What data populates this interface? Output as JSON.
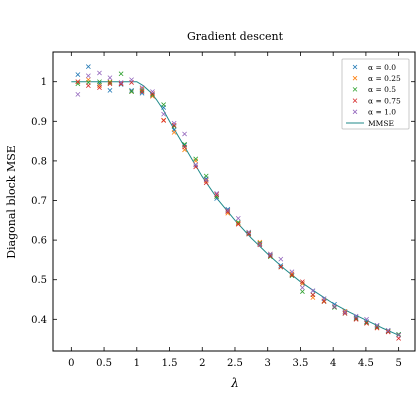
{
  "chart_data": {
    "type": "scatter",
    "title": "Gradient descent",
    "xlabel": "λ",
    "ylabel": "Diagonal block MSE",
    "xlim": [
      -0.28,
      5.25
    ],
    "ylim": [
      0.32,
      1.075
    ],
    "xticks": [
      0,
      0.5,
      1,
      1.5,
      2,
      2.5,
      3,
      3.5,
      4,
      4.5,
      5
    ],
    "xtick_labels": [
      "0",
      "0.5",
      "1",
      "1.5",
      "2",
      "2.5",
      "3",
      "3.5",
      "4",
      "4.5",
      "5"
    ],
    "yticks": [
      0.4,
      0.5,
      0.6,
      0.7,
      0.8,
      0.9,
      1.0
    ],
    "ytick_labels": [
      "0.4",
      "0.5",
      "0.6",
      "0.7",
      "0.8",
      "0.9",
      "1"
    ],
    "grid": false,
    "legend_position": "top-right",
    "x": [
      0.1,
      0.26,
      0.43,
      0.59,
      0.76,
      0.92,
      1.08,
      1.24,
      1.41,
      1.57,
      1.73,
      1.9,
      2.06,
      2.22,
      2.39,
      2.55,
      2.71,
      2.88,
      3.04,
      3.2,
      3.37,
      3.53,
      3.69,
      3.86,
      4.02,
      4.18,
      4.35,
      4.51,
      4.67,
      4.84,
      5.0
    ],
    "series": [
      {
        "name": "α = 0.0",
        "marker": "x",
        "color": "#1f77b4",
        "values": [
          1.018,
          1.038,
          0.995,
          0.978,
          0.993,
          0.978,
          0.971,
          0.965,
          0.935,
          0.878,
          0.84,
          0.79,
          0.755,
          0.705,
          0.678,
          0.642,
          0.618,
          0.59,
          0.562,
          0.536,
          0.512,
          0.49,
          0.472,
          0.452,
          0.438,
          0.42,
          0.405,
          0.394,
          0.384,
          0.372,
          0.362
        ]
      },
      {
        "name": "α = 0.25",
        "marker": "x",
        "color": "#ff7f0e",
        "values": [
          1.0,
          1.005,
          0.99,
          1.0,
          0.995,
          0.975,
          0.982,
          0.963,
          0.903,
          0.872,
          0.828,
          0.8,
          0.75,
          0.71,
          0.668,
          0.642,
          0.62,
          0.595,
          0.565,
          0.532,
          0.515,
          0.49,
          0.455,
          0.447,
          0.432,
          0.42,
          0.402,
          0.39,
          0.378,
          0.37,
          0.36
        ]
      },
      {
        "name": "α = 0.5",
        "marker": "x",
        "color": "#2ca02c",
        "values": [
          0.995,
          0.998,
          1.0,
          0.998,
          1.02,
          0.975,
          0.978,
          0.967,
          0.942,
          0.888,
          0.842,
          0.805,
          0.762,
          0.71,
          0.675,
          0.645,
          0.617,
          0.592,
          0.558,
          0.532,
          0.51,
          0.47,
          0.462,
          0.445,
          0.43,
          0.415,
          0.402,
          0.392,
          0.381,
          0.37,
          0.362
        ]
      },
      {
        "name": "α = 0.75",
        "marker": "x",
        "color": "#d62728",
        "values": [
          1.0,
          0.99,
          0.985,
          0.995,
          0.995,
          0.998,
          0.975,
          0.97,
          0.902,
          0.89,
          0.835,
          0.785,
          0.745,
          0.715,
          0.672,
          0.64,
          0.615,
          0.588,
          0.56,
          0.532,
          0.512,
          0.495,
          0.462,
          0.445,
          0.432,
          0.415,
          0.4,
          0.39,
          0.378,
          0.368,
          0.352
        ]
      },
      {
        "name": "α = 1.0",
        "marker": "x",
        "color": "#9467bd",
        "values": [
          0.968,
          1.015,
          1.022,
          1.01,
          0.998,
          1.005,
          0.985,
          0.975,
          0.918,
          0.895,
          0.868,
          0.79,
          0.752,
          0.718,
          0.675,
          0.655,
          0.62,
          0.59,
          0.565,
          0.552,
          0.52,
          0.48,
          0.472,
          0.452,
          0.432,
          0.418,
          0.408,
          0.4,
          0.385,
          0.372,
          0.36
        ]
      },
      {
        "name": "MMSE",
        "marker": "line",
        "color": "#1f8a8a",
        "x": [
          0.0,
          0.25,
          0.5,
          0.75,
          1.0,
          1.1,
          1.2,
          1.3,
          1.4,
          1.5,
          1.75,
          2.0,
          2.25,
          2.5,
          2.75,
          3.0,
          3.25,
          3.5,
          3.75,
          4.0,
          4.25,
          4.5,
          4.75,
          5.0
        ],
        "values": [
          1.0,
          1.0,
          1.0,
          1.0,
          1.0,
          0.99,
          0.975,
          0.955,
          0.93,
          0.9,
          0.83,
          0.76,
          0.7,
          0.65,
          0.605,
          0.565,
          0.528,
          0.495,
          0.467,
          0.44,
          0.418,
          0.398,
          0.378,
          0.36
        ]
      }
    ]
  }
}
